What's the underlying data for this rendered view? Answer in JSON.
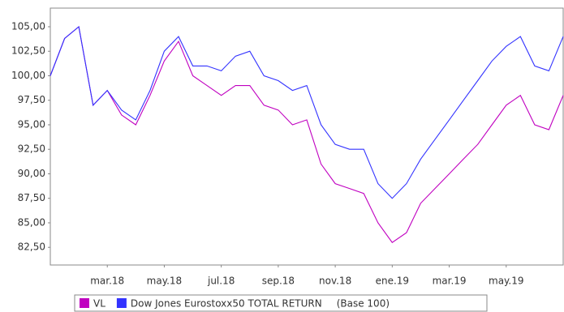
{
  "chart_data": {
    "type": "line",
    "categories": [
      null,
      null,
      null,
      null,
      "mar.18",
      null,
      null,
      null,
      "may.18",
      null,
      null,
      null,
      "jul.18",
      null,
      null,
      null,
      "sep.18",
      null,
      null,
      null,
      "nov.18",
      null,
      null,
      null,
      "ene.19",
      null,
      null,
      null,
      "mar.19",
      null,
      null,
      null,
      "may.19",
      null,
      null,
      null,
      null
    ],
    "series": [
      {
        "name": "VL",
        "color": "#c000c0",
        "values": [
          100,
          103.8,
          105,
          97,
          98.5,
          96,
          95,
          98,
          101.5,
          103.5,
          100,
          99,
          98,
          99,
          99,
          97,
          96.5,
          95,
          95.5,
          91,
          89,
          88.5,
          88,
          85,
          83,
          84,
          87,
          88.5,
          90,
          91.5,
          93,
          95,
          97,
          98,
          95,
          94.5,
          98
        ]
      },
      {
        "name": "Dow Jones Eurostoxx50 TOTAL RETURN",
        "color": "#3333ff",
        "values": [
          100,
          103.8,
          105,
          97,
          98.5,
          96.5,
          95.5,
          98.5,
          102.5,
          104,
          101,
          101,
          100.5,
          102,
          102.5,
          100,
          99.5,
          98.5,
          99,
          95,
          93,
          92.5,
          92.5,
          89,
          87.5,
          89,
          91.5,
          93.5,
          95.5,
          97.5,
          99.5,
          101.5,
          103,
          104,
          101,
          100.5,
          104
        ]
      }
    ],
    "legend_note": "(Base 100)",
    "ylim": [
      80.7,
      106.9
    ],
    "yticks": [
      {
        "value": 82.5,
        "label": "82,50"
      },
      {
        "value": 85,
        "label": "85,00"
      },
      {
        "value": 87.5,
        "label": "87,50"
      },
      {
        "value": 90,
        "label": "90,00"
      },
      {
        "value": 92.5,
        "label": "92,50"
      },
      {
        "value": 95,
        "label": "95,00"
      },
      {
        "value": 97.5,
        "label": "97,50"
      },
      {
        "value": 100,
        "label": "100,00"
      },
      {
        "value": 102.5,
        "label": "102,50"
      },
      {
        "value": 105,
        "label": "105,00"
      }
    ],
    "grid": false
  }
}
